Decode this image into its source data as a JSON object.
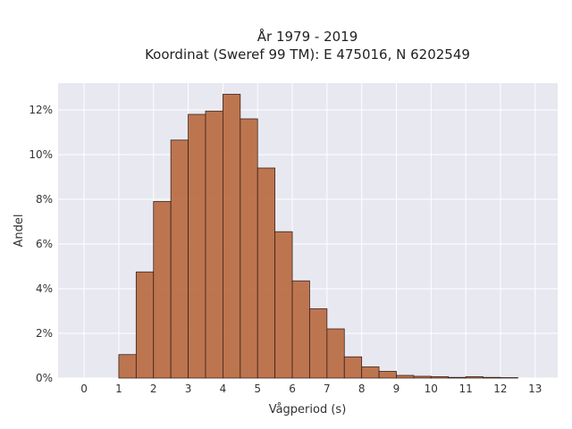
{
  "chart_data": {
    "type": "bar",
    "title": [
      "År 1979 - 2019",
      "Koordinat (Sweref 99 TM): E 475016, N 6202549"
    ],
    "xlabel": "Vågperiod (s)",
    "ylabel": "Andel",
    "xlim": [
      -0.75,
      13.65
    ],
    "ylim": [
      0,
      13.2
    ],
    "grid": true,
    "bin_width": 0.5,
    "bar_color": "#b86a42",
    "edge_color": "#3a2418",
    "background": "#e8e8f1",
    "x_ticks": [
      "0",
      "1",
      "2",
      "3",
      "4",
      "5",
      "6",
      "7",
      "8",
      "9",
      "10",
      "11",
      "12",
      "13"
    ],
    "y_ticks": [
      "0%",
      "2%",
      "4%",
      "6%",
      "8%",
      "10%",
      "12%"
    ],
    "bins": [
      {
        "x": 1.0,
        "value": 1.05
      },
      {
        "x": 1.5,
        "value": 4.75
      },
      {
        "x": 2.0,
        "value": 7.9
      },
      {
        "x": 2.5,
        "value": 10.65
      },
      {
        "x": 3.0,
        "value": 11.8
      },
      {
        "x": 3.5,
        "value": 11.95
      },
      {
        "x": 4.0,
        "value": 12.7
      },
      {
        "x": 4.5,
        "value": 11.6
      },
      {
        "x": 5.0,
        "value": 9.4
      },
      {
        "x": 5.5,
        "value": 6.55
      },
      {
        "x": 6.0,
        "value": 4.35
      },
      {
        "x": 6.5,
        "value": 3.1
      },
      {
        "x": 7.0,
        "value": 2.2
      },
      {
        "x": 7.5,
        "value": 0.95
      },
      {
        "x": 8.0,
        "value": 0.5
      },
      {
        "x": 8.5,
        "value": 0.3
      },
      {
        "x": 9.0,
        "value": 0.12
      },
      {
        "x": 9.5,
        "value": 0.08
      },
      {
        "x": 10.0,
        "value": 0.06
      },
      {
        "x": 10.5,
        "value": 0.03
      },
      {
        "x": 11.0,
        "value": 0.06
      },
      {
        "x": 11.5,
        "value": 0.03
      },
      {
        "x": 12.0,
        "value": 0.02
      }
    ]
  }
}
